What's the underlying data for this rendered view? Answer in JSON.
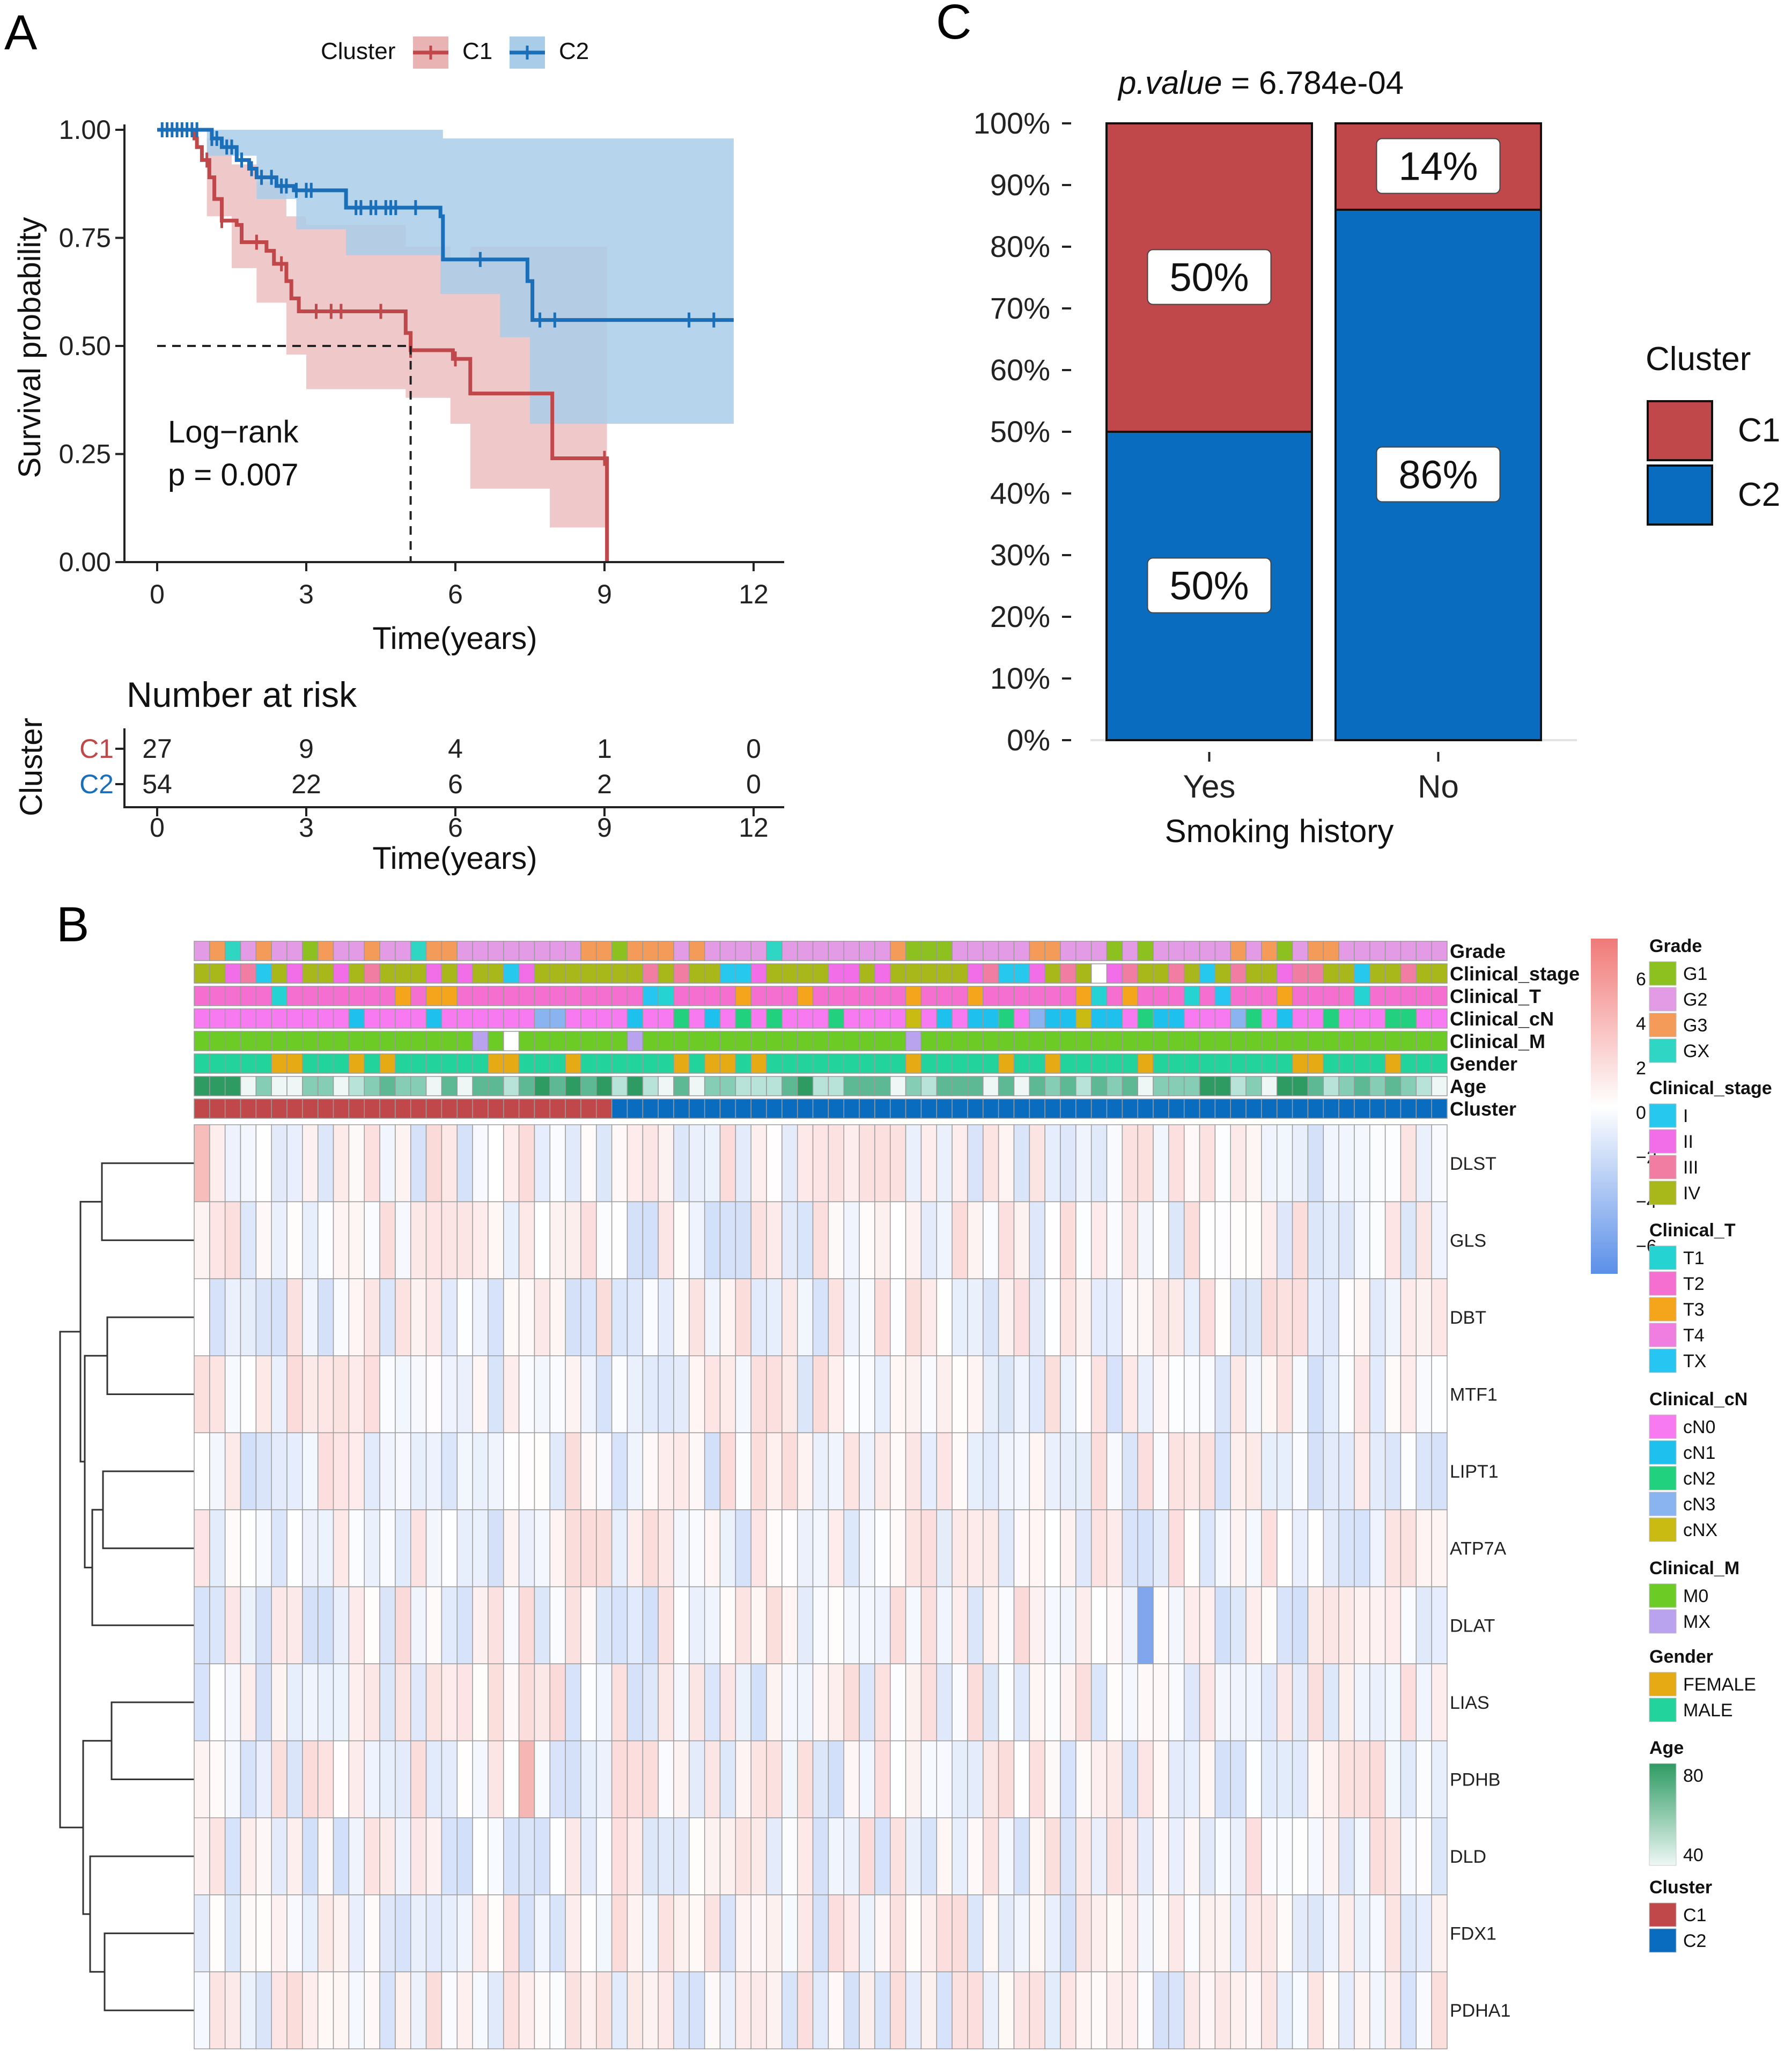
{
  "panels": {
    "a": "A",
    "b": "B",
    "c": "C"
  },
  "survival": {
    "legend_title": "Cluster",
    "groups": [
      {
        "name": "C1",
        "color": "#c0474a",
        "fill": "#e9b3b4"
      },
      {
        "name": "C2",
        "color": "#1b6fb8",
        "fill": "#a9cde9"
      }
    ],
    "ylabel": "Survival probability",
    "xlabel": "Time(years)",
    "y_ticks": [
      "0.00",
      "0.25",
      "0.50",
      "0.75",
      "1.00"
    ],
    "x_ticks": [
      "0",
      "3",
      "6",
      "9",
      "12"
    ],
    "annotation_line1": "Log−rank",
    "annotation_line2": "p = 0.007",
    "median_c1_years": 5.1
  },
  "risk_table": {
    "title": "Number at risk",
    "ylabel": "Cluster",
    "xlabel": "Time(years)",
    "x_ticks": [
      "0",
      "3",
      "6",
      "9",
      "12"
    ],
    "rows": [
      {
        "label": "C1",
        "values": [
          "27",
          "9",
          "4",
          "1",
          "0"
        ]
      },
      {
        "label": "C2",
        "values": [
          "54",
          "22",
          "6",
          "2",
          "0"
        ]
      }
    ]
  },
  "chart_data": [
    {
      "type": "line",
      "title": "",
      "xlabel": "Time(years)",
      "ylabel": "Survival probability",
      "xlim": [
        0,
        12
      ],
      "ylim": [
        0,
        1
      ],
      "series": [
        {
          "name": "C1",
          "steps": [
            [
              0,
              1.0
            ],
            [
              0.7,
              1.0
            ],
            [
              0.75,
              0.98
            ],
            [
              0.8,
              0.96
            ],
            [
              0.9,
              0.93
            ],
            [
              1.05,
              0.89
            ],
            [
              1.15,
              0.84
            ],
            [
              1.3,
              0.79
            ],
            [
              1.6,
              0.78
            ],
            [
              1.7,
              0.74
            ],
            [
              2.2,
              0.72
            ],
            [
              2.35,
              0.69
            ],
            [
              2.6,
              0.65
            ],
            [
              2.7,
              0.61
            ],
            [
              2.85,
              0.58
            ],
            [
              5.0,
              0.53
            ],
            [
              5.1,
              0.49
            ],
            [
              5.95,
              0.47
            ],
            [
              6.3,
              0.39
            ],
            [
              7.95,
              0.24
            ],
            [
              9.0,
              0.24
            ],
            [
              9.05,
              0.0
            ]
          ],
          "upper": [
            [
              0,
              1.0
            ],
            [
              1.0,
              0.98
            ],
            [
              1.5,
              0.92
            ],
            [
              2.0,
              0.88
            ],
            [
              2.6,
              0.8
            ],
            [
              3.0,
              0.78
            ],
            [
              5.0,
              0.73
            ],
            [
              5.9,
              0.7
            ],
            [
              6.3,
              0.73
            ],
            [
              7.9,
              0.73
            ],
            [
              9.05,
              0.73
            ]
          ],
          "lower": [
            [
              0,
              1.0
            ],
            [
              1.0,
              0.8
            ],
            [
              1.5,
              0.68
            ],
            [
              2.0,
              0.6
            ],
            [
              2.6,
              0.48
            ],
            [
              3.0,
              0.4
            ],
            [
              5.0,
              0.38
            ],
            [
              5.9,
              0.32
            ],
            [
              6.3,
              0.17
            ],
            [
              7.9,
              0.08
            ],
            [
              9.05,
              0.08
            ]
          ],
          "censor_times": [
            1.0,
            1.3,
            2.0,
            2.5,
            3.2,
            3.5,
            3.7,
            4.5,
            5.1,
            6.0,
            9.0
          ]
        },
        {
          "name": "C2",
          "steps": [
            [
              0,
              1.0
            ],
            [
              1.1,
              0.98
            ],
            [
              1.3,
              0.96
            ],
            [
              1.6,
              0.93
            ],
            [
              1.85,
              0.91
            ],
            [
              2.0,
              0.89
            ],
            [
              2.4,
              0.87
            ],
            [
              2.75,
              0.86
            ],
            [
              3.8,
              0.82
            ],
            [
              5.7,
              0.8
            ],
            [
              5.75,
              0.7
            ],
            [
              7.45,
              0.65
            ],
            [
              7.55,
              0.56
            ],
            [
              11.6,
              0.56
            ]
          ],
          "upper": [
            [
              0,
              1.0
            ],
            [
              3.0,
              1.0
            ],
            [
              5.75,
              0.98
            ],
            [
              11.6,
              0.98
            ]
          ],
          "lower": [
            [
              0,
              1.0
            ],
            [
              1.0,
              0.94
            ],
            [
              2.0,
              0.84
            ],
            [
              2.8,
              0.77
            ],
            [
              3.8,
              0.71
            ],
            [
              5.7,
              0.62
            ],
            [
              6.9,
              0.52
            ],
            [
              7.5,
              0.32
            ],
            [
              11.6,
              0.32
            ]
          ],
          "censor_times": [
            0.1,
            0.2,
            0.3,
            0.4,
            0.5,
            0.6,
            0.7,
            0.8,
            1.1,
            1.2,
            1.4,
            1.5,
            1.7,
            1.9,
            2.1,
            2.3,
            2.5,
            2.6,
            2.8,
            3.0,
            3.1,
            4.0,
            4.1,
            4.3,
            4.4,
            4.6,
            4.7,
            4.8,
            5.2,
            6.5,
            7.7,
            8.0,
            10.7,
            11.2
          ]
        }
      ]
    },
    {
      "type": "bar",
      "stacked": true,
      "title": "p.value = 6.784e-04",
      "title_italic": "p.value",
      "title_rest": " = 6.784e-04",
      "xlabel": "Smoking history",
      "ylabel": "",
      "categories": [
        "Yes",
        "No"
      ],
      "y_ticks": [
        "0%",
        "10%",
        "20%",
        "30%",
        "40%",
        "50%",
        "60%",
        "70%",
        "80%",
        "90%",
        "100%"
      ],
      "legend_title": "Cluster",
      "series": [
        {
          "name": "C2",
          "color": "#0a6cbf",
          "values": [
            50,
            86
          ],
          "labels": [
            "50%",
            "86%"
          ]
        },
        {
          "name": "C1",
          "color": "#c0474a",
          "values": [
            50,
            14
          ],
          "labels": [
            "50%",
            "14%"
          ]
        }
      ]
    },
    {
      "type": "heatmap",
      "genes": [
        "DLST",
        "GLS",
        "DBT",
        "MTF1",
        "LIPT1",
        "ATP7A",
        "DLAT",
        "LIAS",
        "PDHB",
        "DLD",
        "FDX1",
        "PDHA1"
      ],
      "n_samples": 81,
      "n_cluster_c1": 27,
      "annotation_rows": [
        "Grade",
        "Clinical_stage",
        "Clinical_T",
        "Clinical_cN",
        "Clinical_M",
        "Gender",
        "Age",
        "Cluster"
      ],
      "color_scale_ticks": [
        "6",
        "4",
        "2",
        "0",
        "−2",
        "−4",
        "−6"
      ],
      "color_scale_range": [
        -6,
        6
      ]
    }
  ],
  "heatmap_legend": [
    {
      "title": "Grade",
      "items": [
        {
          "label": "G1",
          "color": "#8cc11f"
        },
        {
          "label": "G2",
          "color": "#e39be6"
        },
        {
          "label": "G3",
          "color": "#f59b5a"
        },
        {
          "label": "GX",
          "color": "#2fd6c3"
        }
      ]
    },
    {
      "title": "Clinical_stage",
      "items": [
        {
          "label": "I",
          "color": "#27c8ee"
        },
        {
          "label": "II",
          "color": "#f26ee8"
        },
        {
          "label": "III",
          "color": "#f27da3"
        },
        {
          "label": "IV",
          "color": "#a8b81b"
        }
      ]
    },
    {
      "title": "Clinical_T",
      "items": [
        {
          "label": "T1",
          "color": "#26d3d3"
        },
        {
          "label": "T2",
          "color": "#f46fd0"
        },
        {
          "label": "T3",
          "color": "#f4a51c"
        },
        {
          "label": "T4",
          "color": "#f07de0"
        },
        {
          "label": "TX",
          "color": "#27c6f2"
        }
      ]
    },
    {
      "title": "Clinical_cN",
      "items": [
        {
          "label": "cN0",
          "color": "#f77af0"
        },
        {
          "label": "cN1",
          "color": "#1ec1ee"
        },
        {
          "label": "cN2",
          "color": "#21d17e"
        },
        {
          "label": "cN3",
          "color": "#8ab4f0"
        },
        {
          "label": "cNX",
          "color": "#c9bb12"
        }
      ]
    },
    {
      "title": "Clinical_M",
      "items": [
        {
          "label": "M0",
          "color": "#6ccb24"
        },
        {
          "label": "MX",
          "color": "#b9a2ee"
        }
      ]
    },
    {
      "title": "Gender",
      "items": [
        {
          "label": "FEMALE",
          "color": "#e6aa15"
        },
        {
          "label": "MALE",
          "color": "#22d39b"
        }
      ]
    },
    {
      "title": "Age",
      "items": [
        {
          "label": "80",
          "color": "#2e9b63"
        },
        {
          "label": "40",
          "color": "#eef7f5"
        }
      ]
    },
    {
      "title": "Cluster",
      "items": [
        {
          "label": "C1",
          "color": "#c0474a"
        },
        {
          "label": "C2",
          "color": "#0a6cbf"
        }
      ]
    }
  ]
}
